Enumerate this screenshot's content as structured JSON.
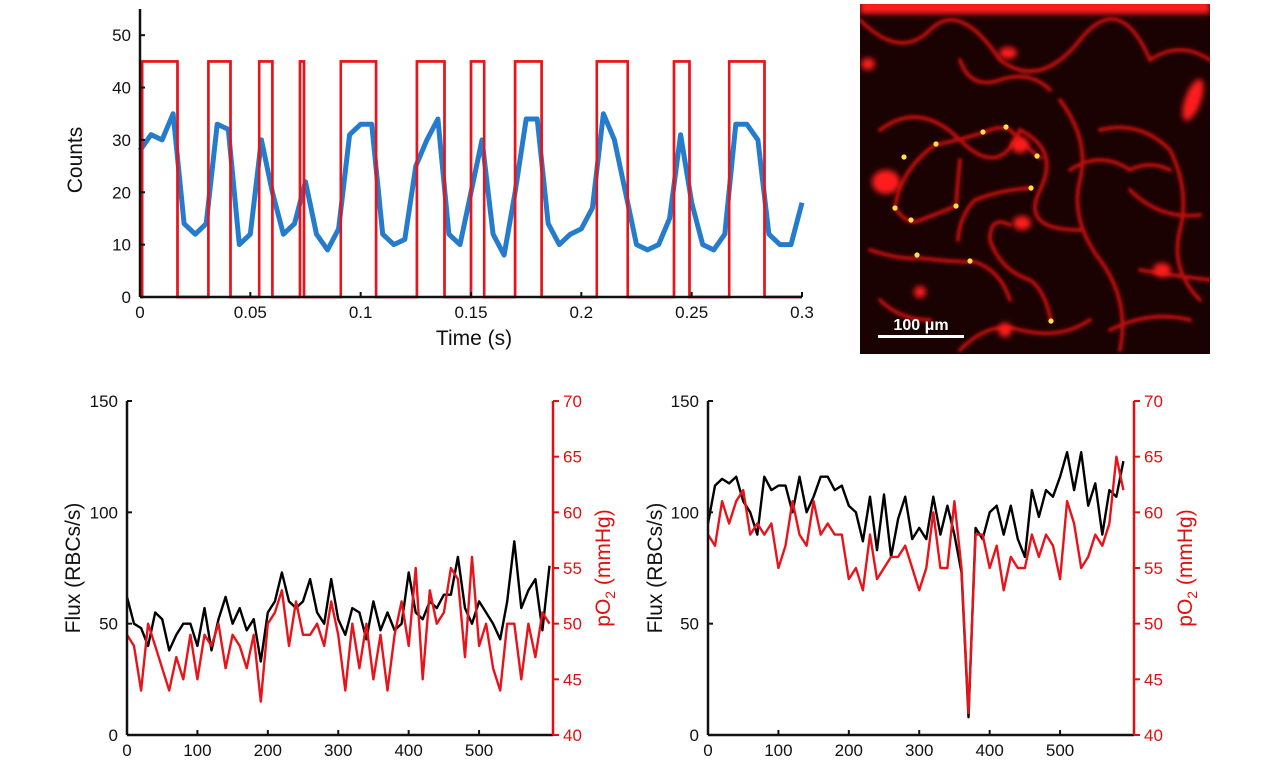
{
  "colors": {
    "counts_trace": "#1a75c9",
    "gate": "#e8141b",
    "flux": "#000000",
    "po2": "#e8141b",
    "micro_bg": "#1a0000",
    "vessel": "#e01010",
    "marker": "#ffe24a"
  },
  "chart_data": [
    {
      "type": "line",
      "xlabel": "Time (s)",
      "ylabel": "Counts",
      "xlim": [
        0,
        0.3
      ],
      "ylim": [
        0,
        55
      ],
      "xticks": [
        "0",
        "0.05",
        "0.1",
        "0.15",
        "0.2",
        "0.25",
        "0.3"
      ],
      "xtick_values": [
        0,
        0.05,
        0.1,
        0.15,
        0.2,
        0.25,
        0.3
      ],
      "yticks": [
        "0",
        "10",
        "20",
        "30",
        "40",
        "50"
      ],
      "ytick_values": [
        0,
        10,
        20,
        30,
        40,
        50
      ],
      "grid": false,
      "series": [
        {
          "type": "line",
          "color": "#1a75c9",
          "x": [
            0,
            0.005,
            0.01,
            0.015,
            0.02,
            0.025,
            0.03,
            0.035,
            0.04,
            0.045,
            0.05,
            0.055,
            0.06,
            0.065,
            0.07,
            0.075,
            0.08,
            0.085,
            0.09,
            0.095,
            0.1,
            0.105,
            0.11,
            0.115,
            0.12,
            0.125,
            0.13,
            0.135,
            0.14,
            0.145,
            0.15,
            0.155,
            0.16,
            0.165,
            0.17,
            0.175,
            0.18,
            0.185,
            0.19,
            0.195,
            0.2,
            0.205,
            0.21,
            0.215,
            0.22,
            0.225,
            0.23,
            0.235,
            0.24,
            0.245,
            0.25,
            0.255,
            0.26,
            0.265,
            0.27,
            0.275,
            0.28,
            0.285,
            0.29,
            0.295,
            0.3
          ],
          "y": [
            28,
            31,
            30,
            35,
            14,
            12,
            14,
            33,
            32,
            10,
            12,
            30,
            20,
            12,
            14,
            22,
            12,
            9,
            13,
            31,
            33,
            33,
            12,
            10,
            11,
            25,
            30,
            34,
            12,
            10,
            20,
            30,
            12,
            8,
            20,
            34,
            34,
            14,
            10,
            12,
            13,
            17,
            35,
            30,
            20,
            10,
            9,
            10,
            15,
            31,
            18,
            10,
            9,
            12,
            33,
            33,
            30,
            12,
            10,
            10,
            18
          ]
        },
        {
          "type": "gate",
          "color": "#e8141b",
          "level": 45,
          "intervals": [
            [
              0.001,
              0.017
            ],
            [
              0.031,
              0.041
            ],
            [
              0.054,
              0.06
            ],
            [
              0.0725,
              0.0743
            ],
            [
              0.091,
              0.107
            ],
            [
              0.1255,
              0.138
            ],
            [
              0.15,
              0.156
            ],
            [
              0.17,
              0.182
            ],
            [
              0.207,
              0.221
            ],
            [
              0.242,
              0.249
            ],
            [
              0.267,
              0.283
            ]
          ]
        }
      ]
    },
    {
      "type": "line",
      "ylabel": "Flux (RBCs/s)",
      "right_ylabel": {
        "main": "pO",
        "sub": "2",
        "rest": " (mmHg)"
      },
      "xlim": [
        0,
        605
      ],
      "ylim": [
        0,
        150
      ],
      "right_ylim": [
        40,
        70
      ],
      "xticks": [
        "0",
        "100",
        "200",
        "300",
        "400",
        "500"
      ],
      "xtick_values": [
        0,
        100,
        200,
        300,
        400,
        500
      ],
      "yticks": [
        "0",
        "50",
        "100",
        "150"
      ],
      "ytick_values": [
        0,
        50,
        100,
        150
      ],
      "right_yticks": [
        "40",
        "45",
        "50",
        "55",
        "60",
        "65",
        "70"
      ],
      "right_ytick_values": [
        40,
        45,
        50,
        55,
        60,
        65,
        70
      ],
      "grid": false,
      "x_step": 10,
      "series": [
        {
          "axis": "left",
          "color": "#000000",
          "y": [
            62,
            50,
            48,
            40,
            55,
            52,
            38,
            45,
            50,
            50,
            40,
            57,
            38,
            52,
            62,
            50,
            57,
            47,
            52,
            33,
            55,
            60,
            73,
            60,
            57,
            60,
            70,
            55,
            50,
            70,
            52,
            45,
            57,
            55,
            43,
            60,
            47,
            55,
            47,
            50,
            73,
            55,
            52,
            60,
            57,
            63,
            63,
            80,
            57,
            50,
            60,
            55,
            50,
            43,
            60,
            87,
            57,
            65,
            70,
            47,
            76
          ]
        },
        {
          "axis": "right",
          "color": "#e8141b",
          "y": [
            49,
            48,
            44,
            50,
            48,
            46,
            44,
            47,
            45,
            49,
            45,
            49,
            48,
            50,
            46,
            49,
            48,
            46,
            49,
            43,
            50,
            51,
            53,
            48,
            52,
            49,
            49,
            50,
            48,
            52,
            49,
            44,
            50,
            46,
            50,
            45,
            49,
            44,
            49,
            52,
            48,
            55,
            45,
            53,
            50,
            51,
            55,
            54,
            47,
            56,
            48,
            50,
            46,
            44,
            50,
            50,
            45,
            50,
            47,
            51,
            50
          ]
        }
      ]
    },
    {
      "type": "line",
      "ylabel": "Flux (RBCs/s)",
      "right_ylabel": {
        "main": "pO",
        "sub": "2",
        "rest": " (mmHg)"
      },
      "xlim": [
        0,
        605
      ],
      "ylim": [
        0,
        150
      ],
      "right_ylim": [
        40,
        70
      ],
      "xticks": [
        "0",
        "100",
        "200",
        "300",
        "400",
        "500"
      ],
      "xtick_values": [
        0,
        100,
        200,
        300,
        400,
        500
      ],
      "yticks": [
        "0",
        "50",
        "100",
        "150"
      ],
      "ytick_values": [
        0,
        50,
        100,
        150
      ],
      "right_yticks": [
        "40",
        "45",
        "50",
        "55",
        "60",
        "65",
        "70"
      ],
      "right_ytick_values": [
        40,
        45,
        50,
        55,
        60,
        65,
        70
      ],
      "grid": false,
      "x_step": 10,
      "series": [
        {
          "axis": "left",
          "color": "#000000",
          "y": [
            95,
            112,
            115,
            113,
            116,
            105,
            100,
            90,
            116,
            110,
            112,
            112,
            100,
            116,
            100,
            107,
            116,
            116,
            110,
            112,
            103,
            100,
            87,
            107,
            83,
            108,
            80,
            97,
            107,
            88,
            93,
            88,
            107,
            90,
            103,
            90,
            73,
            8,
            93,
            88,
            100,
            103,
            90,
            103,
            88,
            80,
            110,
            98,
            110,
            107,
            116,
            127,
            110,
            127,
            103,
            113,
            90,
            110,
            107,
            123
          ]
        },
        {
          "axis": "right",
          "color": "#e8141b",
          "y": [
            58,
            57,
            61,
            59,
            61,
            62,
            58,
            59,
            58,
            59,
            55,
            57,
            61,
            58,
            57,
            61,
            58,
            59,
            58,
            58,
            54,
            55,
            53,
            58,
            54,
            55,
            56,
            56,
            57,
            55,
            53,
            55,
            60,
            55,
            55,
            61,
            55,
            42,
            58,
            58,
            55,
            57,
            53,
            56,
            55,
            55,
            58,
            56,
            58,
            57,
            54,
            61,
            59,
            55,
            56,
            58,
            57,
            59,
            65,
            62
          ]
        }
      ]
    }
  ],
  "micrograph": {
    "scale_bar_label": "100 μm"
  }
}
